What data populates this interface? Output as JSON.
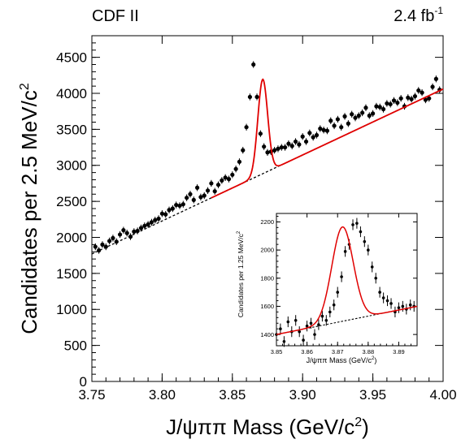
{
  "header": {
    "experiment": "CDF II",
    "luminosity": "2.4 fb",
    "luminosity_exp": "-1"
  },
  "colors": {
    "fit": "#e00000",
    "points": "#000000",
    "background_fit": "#000000"
  },
  "chart_data": [
    {
      "type": "scatter",
      "xlabel": "J/ψππ Mass (GeV/c",
      "xlabel_sup": "2",
      "xlabel_end": ")",
      "ylabel": "Candidates per 2.5 MeV/c",
      "ylabel_sup": "2",
      "xlim": [
        3.75,
        4.0
      ],
      "ylim": [
        0,
        4800
      ],
      "xticks": [
        3.75,
        3.8,
        3.85,
        3.9,
        3.95,
        4.0
      ],
      "xtick_labels": [
        "3.75",
        "3.80",
        "3.85",
        "3.90",
        "3.95",
        "4.00"
      ],
      "yticks": [
        0,
        500,
        1000,
        1500,
        2000,
        2500,
        3000,
        3500,
        4000,
        4500
      ],
      "ytick_labels": [
        "0",
        "500",
        "1000",
        "1500",
        "2000",
        "2500",
        "3000",
        "3500",
        "4000",
        "4500"
      ],
      "grid": false,
      "series": [
        {
          "kind": "points_with_errors",
          "x": [
            3.7525,
            3.755,
            3.7575,
            3.76,
            3.7625,
            3.765,
            3.7675,
            3.77,
            3.7725,
            3.775,
            3.7775,
            3.78,
            3.7825,
            3.785,
            3.7875,
            3.79,
            3.7925,
            3.795,
            3.7975,
            3.8,
            3.8025,
            3.805,
            3.8075,
            3.81,
            3.8125,
            3.815,
            3.8175,
            3.82,
            3.8225,
            3.825,
            3.8275,
            3.83,
            3.8325,
            3.835,
            3.8375,
            3.84,
            3.8425,
            3.845,
            3.8475,
            3.85,
            3.8525,
            3.855,
            3.8575,
            3.86,
            3.8625,
            3.865,
            3.8675,
            3.87,
            3.8725,
            3.875,
            3.8775,
            3.88,
            3.8825,
            3.885,
            3.8875,
            3.89,
            3.8925,
            3.895,
            3.8975,
            3.9,
            3.9025,
            3.905,
            3.9075,
            3.91,
            3.9125,
            3.915,
            3.9175,
            3.92,
            3.9225,
            3.925,
            3.9275,
            3.93,
            3.9325,
            3.935,
            3.9375,
            3.94,
            3.9425,
            3.945,
            3.9475,
            3.95,
            3.9525,
            3.955,
            3.9575,
            3.96,
            3.9625,
            3.965,
            3.9675,
            3.97,
            3.9725,
            3.975,
            3.9775,
            3.98,
            3.9825,
            3.985,
            3.9875,
            3.99,
            3.9925,
            3.995,
            3.9975
          ],
          "y": [
            1870,
            1820,
            1900,
            1870,
            1950,
            1990,
            1940,
            2040,
            2100,
            2060,
            2010,
            2080,
            2090,
            2130,
            2160,
            2180,
            2210,
            2240,
            2260,
            2330,
            2320,
            2380,
            2400,
            2450,
            2440,
            2460,
            2550,
            2600,
            2520,
            2690,
            2560,
            2580,
            2650,
            2750,
            2640,
            2730,
            2790,
            2830,
            2810,
            2870,
            2950,
            3050,
            3210,
            3530,
            3950,
            4400,
            3950,
            3440,
            3260,
            3180,
            3190,
            3210,
            3230,
            3250,
            3250,
            3300,
            3270,
            3330,
            3290,
            3400,
            3330,
            3450,
            3390,
            3420,
            3510,
            3490,
            3480,
            3620,
            3550,
            3640,
            3530,
            3680,
            3580,
            3710,
            3660,
            3690,
            3730,
            3800,
            3690,
            3720,
            3820,
            3810,
            3780,
            3860,
            3850,
            3900,
            3870,
            3930,
            3820,
            3940,
            3920,
            3960,
            4040,
            4010,
            3910,
            3930,
            4090,
            4200,
            4050
          ],
          "error": 47
        },
        {
          "kind": "fit_curve",
          "background": {
            "x": [
              3.75,
              4.0
            ],
            "y": [
              1770,
              4060
            ]
          },
          "peak_mass": 3.8716,
          "peak_height": 1310,
          "peak_width": 0.0035
        }
      ]
    },
    {
      "type": "scatter",
      "role": "inset",
      "xlabel": "J/ψππ Mass (GeV/c",
      "xlabel_sup": "2",
      "xlabel_end": ")",
      "ylabel": "Candidates per 1.25 MeV/c",
      "ylabel_sup": "2",
      "xlim": [
        3.85,
        3.896
      ],
      "ylim": [
        1320,
        2260
      ],
      "xticks": [
        3.85,
        3.86,
        3.87,
        3.88,
        3.89
      ],
      "xtick_labels": [
        "3.85",
        "3.86",
        "3.87",
        "3.88",
        "3.89"
      ],
      "yticks": [
        1400,
        1600,
        1800,
        2000,
        2200
      ],
      "ytick_labels": [
        "1400",
        "1600",
        "1800",
        "2000",
        "2200"
      ],
      "grid": false,
      "series": [
        {
          "kind": "points_with_errors",
          "x": [
            3.85,
            3.8513,
            3.8525,
            3.8538,
            3.855,
            3.8563,
            3.8575,
            3.8588,
            3.86,
            3.8613,
            3.8625,
            3.8638,
            3.865,
            3.8663,
            3.8675,
            3.8688,
            3.87,
            3.8713,
            3.8725,
            3.8738,
            3.875,
            3.8763,
            3.8775,
            3.8788,
            3.88,
            3.8813,
            3.8825,
            3.8838,
            3.885,
            3.8863,
            3.8875,
            3.8888,
            3.89,
            3.8913,
            3.8925,
            3.8938,
            3.895
          ],
          "y": [
            1400,
            1440,
            1350,
            1490,
            1420,
            1500,
            1420,
            1360,
            1460,
            1480,
            1400,
            1470,
            1530,
            1500,
            1560,
            1610,
            1700,
            1810,
            1990,
            2040,
            2180,
            2190,
            2130,
            2060,
            2000,
            1880,
            1800,
            1700,
            1660,
            1640,
            1620,
            1560,
            1590,
            1600,
            1580,
            1610,
            1600
          ],
          "error": 38
        },
        {
          "kind": "fit_curve",
          "background": {
            "x": [
              3.85,
              3.896
            ],
            "y": [
              1400,
              1600
            ]
          },
          "peak_mass": 3.8716,
          "peak_height": 670,
          "peak_width": 0.0035
        }
      ]
    }
  ]
}
